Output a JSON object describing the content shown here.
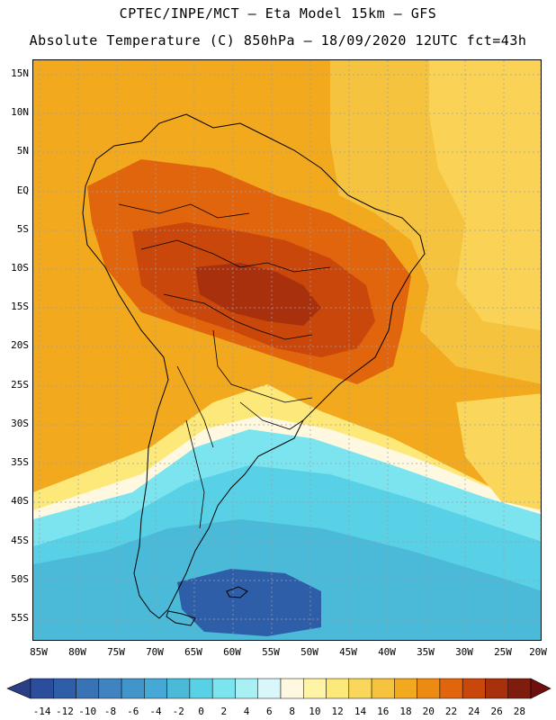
{
  "title": {
    "line1": "CPTEC/INPE/MCT –  Eta Model 15km – GFS",
    "line2": "Absolute Temperature (C) 850hPa – 18/09/2020 12UTC fct=43h"
  },
  "axes": {
    "lat_labels": [
      "15N",
      "10N",
      "5N",
      "EQ",
      "5S",
      "10S",
      "15S",
      "20S",
      "25S",
      "30S",
      "35S",
      "40S",
      "45S",
      "50S",
      "55S"
    ],
    "lon_labels": [
      "85W",
      "80W",
      "75W",
      "70W",
      "65W",
      "60W",
      "55W",
      "50W",
      "45W",
      "40W",
      "35W",
      "30W",
      "25W",
      "20W"
    ]
  },
  "colorbar": {
    "labels": [
      "-14",
      "-12",
      "-10",
      "-8",
      "-6",
      "-4",
      "-2",
      "0",
      "2",
      "4",
      "6",
      "8",
      "10",
      "12",
      "14",
      "16",
      "18",
      "20",
      "22",
      "24",
      "26",
      "28"
    ],
    "colors": [
      "#2b4d9b",
      "#2f5ea8",
      "#3a72b6",
      "#3f84c1",
      "#4295c9",
      "#46a8d4",
      "#4bbad9",
      "#58d0e5",
      "#7ce4ee",
      "#a9f0f5",
      "#d9f7fa",
      "#fff8e0",
      "#fff4a6",
      "#fde87a",
      "#fad65a",
      "#f6c33e",
      "#f2a91e",
      "#ed8a11",
      "#e0650c",
      "#c9470b",
      "#a8300c",
      "#7e1d0e"
    ],
    "under_color": "#2b3f86",
    "over_color": "#6e1010"
  },
  "palette": {
    "map_background": "#f2a91e",
    "land_outline": "#000000",
    "grid": "#9aa0aa"
  }
}
